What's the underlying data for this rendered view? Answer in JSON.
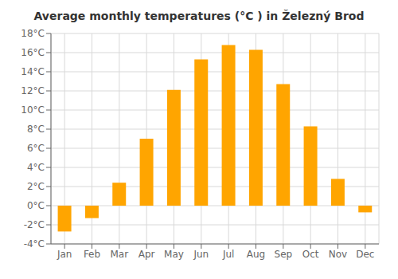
{
  "chart_data": {
    "type": "bar",
    "title": "Average monthly temperatures (°C ) in Železný Brod",
    "categories": [
      "Jan",
      "Feb",
      "Mar",
      "Apr",
      "May",
      "Jun",
      "Jul",
      "Aug",
      "Sep",
      "Oct",
      "Nov",
      "Dec"
    ],
    "values": [
      -2.7,
      -1.3,
      2.4,
      7.0,
      12.1,
      15.3,
      16.8,
      16.3,
      12.7,
      8.3,
      2.8,
      -0.7
    ],
    "color": "#FFA500",
    "ylim": [
      -4,
      18
    ],
    "yticks": [
      {
        "value": -4,
        "label": "-4°C"
      },
      {
        "value": -2,
        "label": "-2°C"
      },
      {
        "value": 0,
        "label": "0°C"
      },
      {
        "value": 2,
        "label": "2°C"
      },
      {
        "value": 4,
        "label": "4°C"
      },
      {
        "value": 6,
        "label": "6°C"
      },
      {
        "value": 8,
        "label": "8°C"
      },
      {
        "value": 10,
        "label": "10°C"
      },
      {
        "value": 12,
        "label": "12°C"
      },
      {
        "value": 14,
        "label": "14°C"
      },
      {
        "value": 16,
        "label": "16°C"
      },
      {
        "value": 18,
        "label": "18°C"
      }
    ],
    "grid": true
  }
}
